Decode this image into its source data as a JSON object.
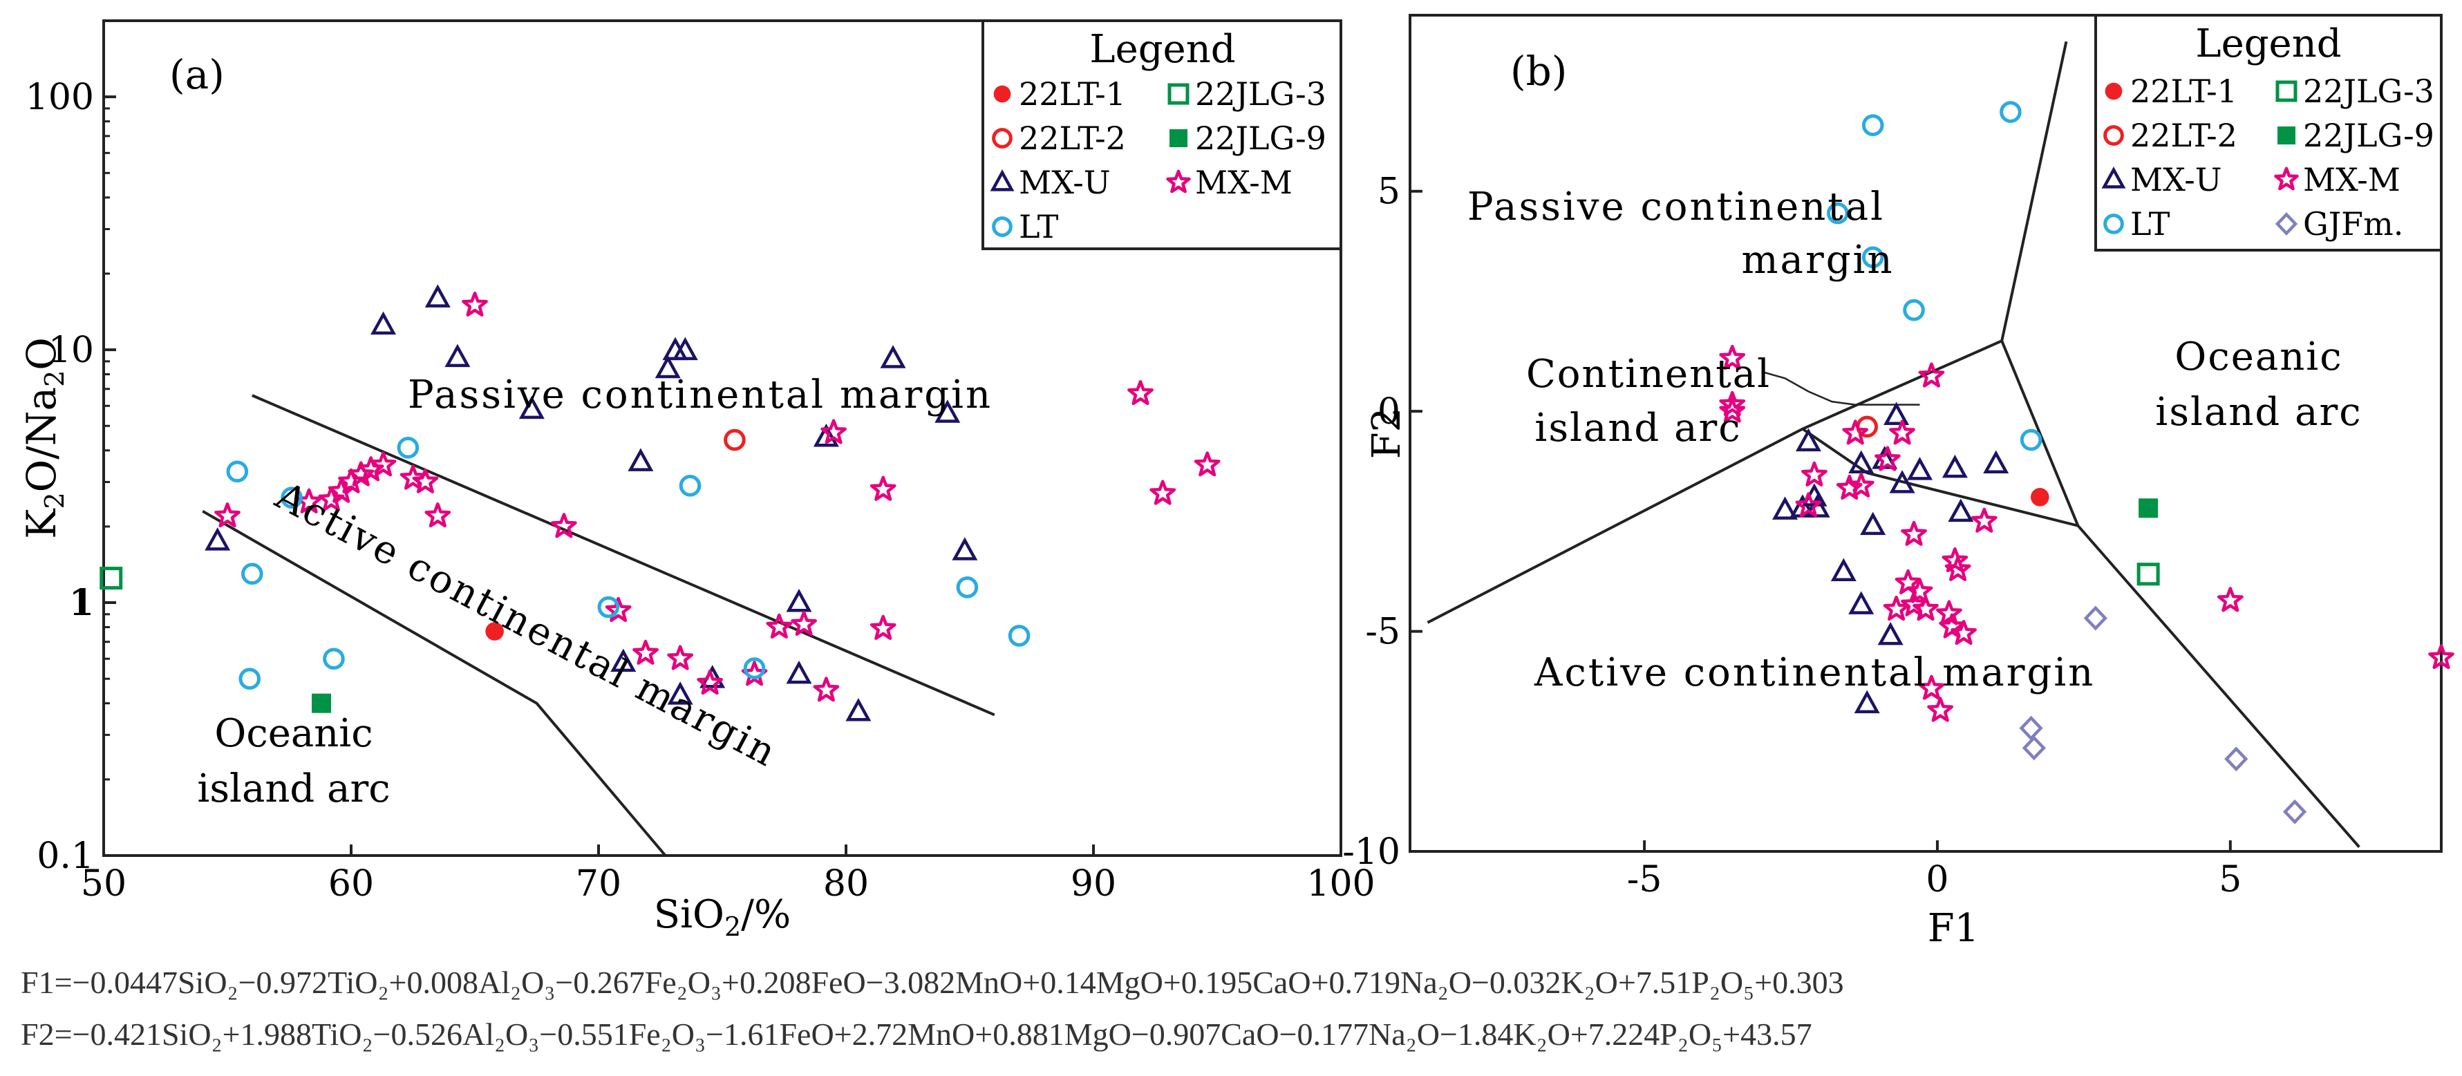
{
  "chart_data": [
    {
      "type": "scatter",
      "panel_label": "(a)",
      "xlabel": "SiO2/%",
      "ylabel": "K2O/Na2O",
      "yscale": "log",
      "xlim": [
        50,
        100
      ],
      "ylim": [
        0.1,
        200
      ],
      "x_ticks": [
        "50",
        "60",
        "70",
        "80",
        "90",
        "100"
      ],
      "y_ticks": [
        "0.1",
        "1",
        "10",
        "100"
      ],
      "legend_title": "Legend",
      "legend_labels": {
        "lt1": "22LT-1",
        "jlg3": "22JLG-3",
        "lt2": "22LT-2",
        "jlg9": "22JLG-9",
        "mxu": "MX-U",
        "mxm": "MX-M",
        "lt": "LT"
      },
      "field_labels": {
        "pcm": "Passive continental margin",
        "acm": "Active continental margin",
        "oia1": "Oceanic",
        "oia2": "island arc"
      },
      "boundary_lines": [
        [
          [
            56,
            6.6
          ],
          [
            86,
            0.36
          ]
        ],
        [
          [
            54,
            2.3
          ],
          [
            67.5,
            0.4
          ],
          [
            72.7,
            0.1
          ]
        ]
      ],
      "series": [
        {
          "name": "22LT-1",
          "marker": "filled-circle",
          "color": "#ee2024",
          "points": [
            [
              65.8,
              0.77
            ]
          ]
        },
        {
          "name": "22LT-2",
          "marker": "open-circle",
          "color": "#ee2024",
          "points": [
            [
              75.5,
              4.4
            ]
          ]
        },
        {
          "name": "22JLG-3",
          "marker": "open-square",
          "color": "#009245",
          "points": [
            [
              50.3,
              1.25
            ]
          ]
        },
        {
          "name": "22JLG-9",
          "marker": "filled-square",
          "color": "#009245",
          "points": [
            [
              58.8,
              0.4
            ]
          ]
        },
        {
          "name": "MX-U",
          "marker": "open-triangle",
          "color": "#1b1464",
          "points": [
            [
              61.3,
              12.5
            ],
            [
              63.5,
              16
            ],
            [
              64.3,
              9.3
            ],
            [
              67.3,
              5.8
            ],
            [
              71.7,
              3.6
            ],
            [
              72.8,
              8.4
            ],
            [
              73.1,
              9.9
            ],
            [
              73.5,
              9.9
            ],
            [
              79.2,
              4.5
            ],
            [
              81.9,
              9.2
            ],
            [
              84.1,
              5.6
            ],
            [
              84.8,
              1.6
            ],
            [
              78.1,
              1.0
            ],
            [
              78.1,
              0.52
            ],
            [
              80.5,
              0.37
            ],
            [
              54.6,
              1.75
            ],
            [
              73.3,
              0.43
            ],
            [
              74.6,
              0.5
            ],
            [
              71.0,
              0.58
            ]
          ]
        },
        {
          "name": "MX-M",
          "marker": "open-star",
          "color": "#e6007e",
          "points": [
            [
              55.0,
              2.2
            ],
            [
              58.3,
              2.5
            ],
            [
              59.2,
              2.55
            ],
            [
              59.6,
              2.75
            ],
            [
              60.0,
              3.0
            ],
            [
              60.4,
              3.2
            ],
            [
              60.8,
              3.35
            ],
            [
              61.3,
              3.5
            ],
            [
              62.5,
              3.1
            ],
            [
              63.0,
              3.0
            ],
            [
              63.5,
              2.2
            ],
            [
              65.0,
              15
            ],
            [
              68.6,
              2.0
            ],
            [
              70.8,
              0.93
            ],
            [
              71.9,
              0.63
            ],
            [
              73.3,
              0.6
            ],
            [
              74.5,
              0.48
            ],
            [
              76.3,
              0.52
            ],
            [
              77.3,
              0.8
            ],
            [
              78.3,
              0.82
            ],
            [
              79.5,
              4.7
            ],
            [
              79.2,
              0.45
            ],
            [
              81.5,
              2.8
            ],
            [
              81.5,
              0.79
            ],
            [
              91.9,
              6.7
            ],
            [
              92.8,
              2.7
            ],
            [
              94.6,
              3.5
            ]
          ]
        },
        {
          "name": "LT",
          "marker": "open-circle",
          "color": "#29abe2",
          "points": [
            [
              55.4,
              3.3
            ],
            [
              55.9,
              0.5
            ],
            [
              56.0,
              1.3
            ],
            [
              57.6,
              2.6
            ],
            [
              59.3,
              0.6
            ],
            [
              62.3,
              4.1
            ],
            [
              73.7,
              2.9
            ],
            [
              70.4,
              0.96
            ],
            [
              76.3,
              0.55
            ],
            [
              84.9,
              1.15
            ],
            [
              87.0,
              0.74
            ]
          ]
        }
      ]
    },
    {
      "type": "scatter",
      "panel_label": "(b)",
      "xlabel": "F1",
      "ylabel": "F2",
      "xlim": [
        -9,
        8.6
      ],
      "ylim": [
        -10,
        9
      ],
      "x_ticks": [
        "-5",
        "0",
        "5"
      ],
      "y_ticks": [
        "5",
        "0",
        "-5",
        "-10"
      ],
      "legend_title": "Legend",
      "legend_labels": {
        "lt1": "22LT-1",
        "jlg3": "22JLG-3",
        "lt2": "22LT-2",
        "jlg9": "22JLG-9",
        "mxu": "MX-U",
        "mxm": "MX-M",
        "lt": "LT",
        "gjf": "GJFm."
      },
      "field_labels": {
        "pcm1": "Passive continental",
        "pcm2": "margin",
        "cia1": "Continental",
        "cia2": "island arc",
        "oia1": "Oceanic",
        "oia2": "island arc",
        "acm": "Active continental margin"
      },
      "boundary_lines": [
        [
          [
            -8.7,
            -4.8
          ],
          [
            -2.3,
            -0.4
          ],
          [
            1.1,
            1.6
          ],
          [
            2.2,
            8.4
          ]
        ],
        [
          [
            -2.3,
            -0.4
          ],
          [
            -1.2,
            -1.4
          ],
          [
            2.4,
            -2.6
          ],
          [
            7.2,
            -9.9
          ]
        ],
        [
          [
            1.1,
            1.6
          ],
          [
            2.4,
            -2.6
          ]
        ]
      ],
      "annotation_curve": [
        [
          -3.0,
          0.9
        ],
        [
          -2.6,
          0.75
        ],
        [
          -2.2,
          0.45
        ],
        [
          -1.8,
          0.22
        ],
        [
          -1.4,
          0.15
        ],
        [
          -0.3,
          0.15
        ]
      ],
      "series": [
        {
          "name": "22LT-1",
          "marker": "filled-circle",
          "color": "#ee2024",
          "points": [
            [
              1.75,
              -1.95
            ]
          ]
        },
        {
          "name": "22LT-2",
          "marker": "open-circle",
          "color": "#ee2024",
          "points": [
            [
              -1.2,
              -0.35
            ]
          ]
        },
        {
          "name": "22JLG-3",
          "marker": "open-square",
          "color": "#009245",
          "points": [
            [
              3.6,
              -3.7
            ]
          ]
        },
        {
          "name": "22JLG-9",
          "marker": "filled-square",
          "color": "#009245",
          "points": [
            [
              3.6,
              -2.2
            ]
          ]
        },
        {
          "name": "MX-U",
          "marker": "open-triangle",
          "color": "#1b1464",
          "points": [
            [
              -2.2,
              -0.7
            ],
            [
              -1.3,
              -1.2
            ],
            [
              -0.9,
              -1.1
            ],
            [
              -0.6,
              -1.65
            ],
            [
              -0.3,
              -1.35
            ],
            [
              0.3,
              -1.3
            ],
            [
              1.0,
              -1.2
            ],
            [
              -1.1,
              -2.6
            ],
            [
              -2.1,
              -1.95
            ],
            [
              -2.05,
              -2.2
            ],
            [
              -2.3,
              -2.2
            ],
            [
              -2.6,
              -2.25
            ],
            [
              -1.3,
              -4.4
            ],
            [
              -1.6,
              -3.65
            ],
            [
              -0.8,
              -5.1
            ],
            [
              -1.2,
              -6.65
            ],
            [
              0.4,
              -2.3
            ],
            [
              -0.7,
              -0.1
            ]
          ]
        },
        {
          "name": "MX-M",
          "marker": "open-star",
          "color": "#e6007e",
          "points": [
            [
              -3.5,
              1.2
            ],
            [
              -3.5,
              0.15
            ],
            [
              -3.5,
              0.0
            ],
            [
              -2.1,
              -1.45
            ],
            [
              -2.2,
              -2.15
            ],
            [
              -1.5,
              -1.75
            ],
            [
              -1.3,
              -1.7
            ],
            [
              -1.4,
              -0.5
            ],
            [
              -0.85,
              -1.1
            ],
            [
              -0.6,
              -0.5
            ],
            [
              -0.1,
              0.8
            ],
            [
              -0.4,
              -2.8
            ],
            [
              0.3,
              -3.4
            ],
            [
              0.35,
              -3.6
            ],
            [
              0.8,
              -2.5
            ],
            [
              -0.5,
              -3.9
            ],
            [
              -0.3,
              -4.1
            ],
            [
              -0.4,
              -4.4
            ],
            [
              -0.7,
              -4.5
            ],
            [
              0.2,
              -4.6
            ],
            [
              0.25,
              -4.9
            ],
            [
              0.45,
              -5.05
            ],
            [
              -0.1,
              -6.3
            ],
            [
              0.05,
              -6.8
            ],
            [
              5.0,
              -4.3
            ],
            [
              8.6,
              -5.6
            ],
            [
              -0.2,
              -4.5
            ]
          ]
        },
        {
          "name": "LT",
          "marker": "open-circle",
          "color": "#29abe2",
          "points": [
            [
              -1.1,
              6.5
            ],
            [
              1.25,
              6.8
            ],
            [
              -1.7,
              4.5
            ],
            [
              -1.1,
              3.5
            ],
            [
              -0.4,
              2.3
            ],
            [
              1.6,
              -0.65
            ]
          ]
        },
        {
          "name": "GJFm.",
          "marker": "open-diamond",
          "color": "#7f7fbf",
          "points": [
            [
              2.7,
              -4.7
            ],
            [
              1.6,
              -7.2
            ],
            [
              1.65,
              -7.65
            ],
            [
              5.1,
              -7.9
            ],
            [
              6.1,
              -9.1
            ]
          ]
        }
      ]
    }
  ],
  "formulas": {
    "f1": "F1=−0.0447SiO₂−0.972TiO₂+0.008Al₂O₃−0.267Fe₂O₃+0.208FeO−3.082MnO+0.14MgO+0.195CaO+0.719Na₂O−0.032K₂O+7.51P₂O₅+0.303",
    "f2": "F2=−0.421SiO₂+1.988TiO₂−0.526Al₂O₃−0.551Fe₂O₃−1.61FeO+2.72MnO+0.881MgO−0.907CaO−0.177Na₂O−1.84K₂O+7.224P₂O₅+43.57"
  }
}
